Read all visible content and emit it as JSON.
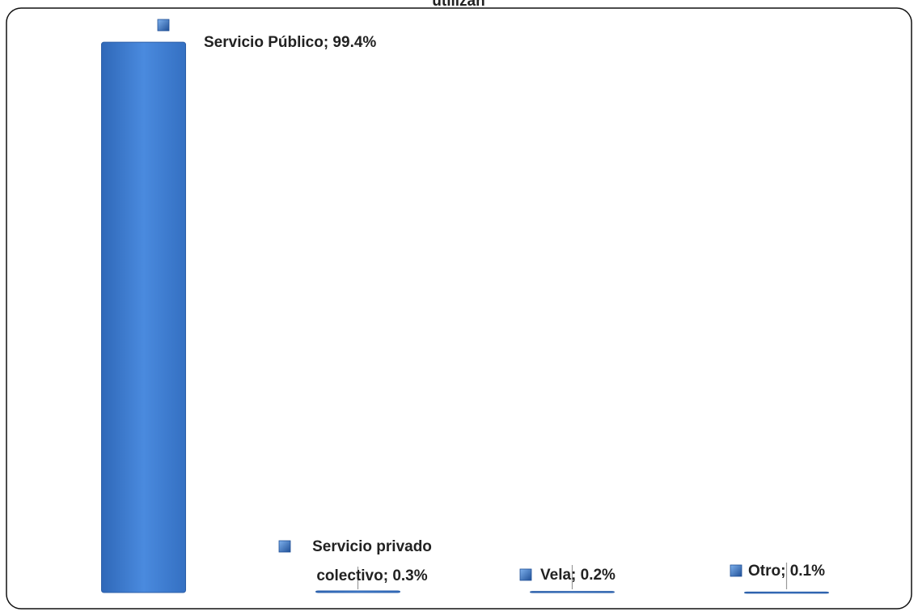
{
  "chart_data": {
    "type": "bar",
    "title": "utilizan",
    "categories": [
      "Servicio Público",
      "Servicio privado colectivo",
      "Vela",
      "Otro"
    ],
    "values": [
      99.4,
      0.3,
      0.2,
      0.1
    ],
    "value_labels": [
      "Servicio Público; 99.4%",
      "Servicio privado colectivo; 0.3%",
      "Vela; 0.2%",
      "Otro; 0.1%"
    ],
    "color": "#3f7fd0",
    "ylim": [
      0,
      100
    ]
  }
}
